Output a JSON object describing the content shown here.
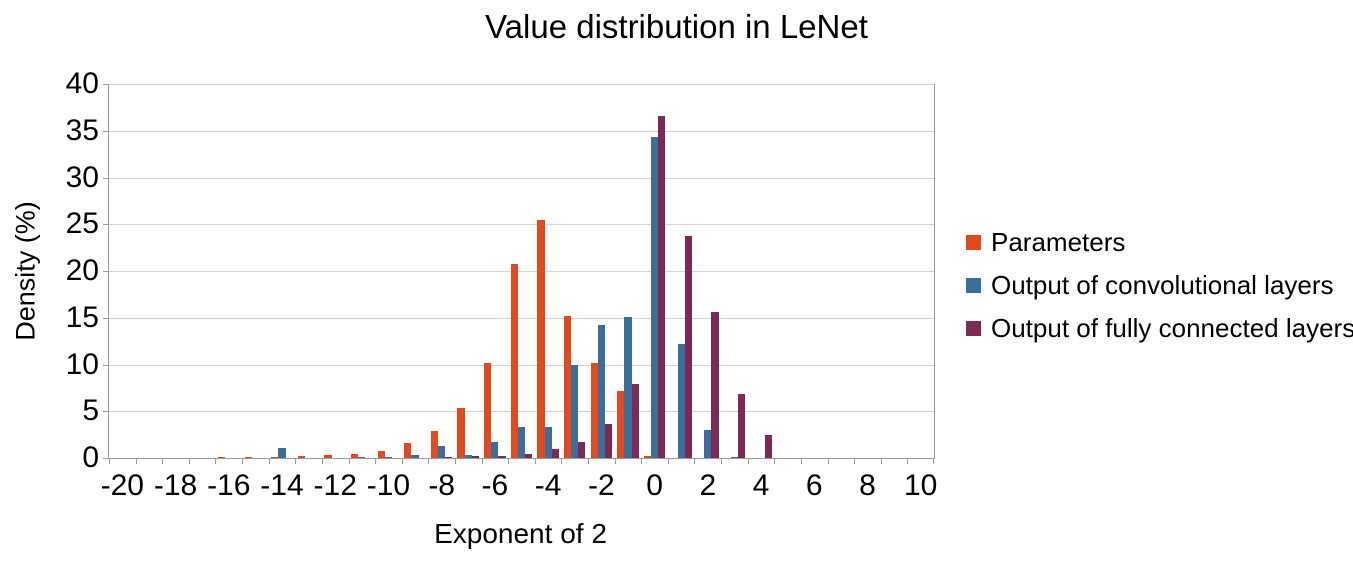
{
  "title": "Value distribution in LeNet",
  "axes": {
    "x_title": "Exponent of 2",
    "y_title": "Density (%)"
  },
  "legend": {
    "position": "right"
  },
  "chart_data": {
    "type": "bar",
    "title": "Value distribution in LeNet",
    "xlabel": "Exponent of 2",
    "ylabel": "Density (%)",
    "ylim": [
      0,
      40
    ],
    "y_tick_step": 5,
    "x_tick_labels": [
      "-20",
      "-18",
      "-16",
      "-14",
      "-12",
      "-10",
      "-8",
      "-6",
      "-4",
      "-2",
      "0",
      "2",
      "4",
      "6",
      "8",
      "10"
    ],
    "grid": true,
    "legend_position": "right",
    "x": [
      -20,
      -19,
      -18,
      -17,
      -16,
      -15,
      -14,
      -13,
      -12,
      -11,
      -10,
      -9,
      -8,
      -7,
      -6,
      -5,
      -4,
      -3,
      -2,
      -1,
      0,
      1,
      2,
      3,
      4,
      5,
      6,
      7,
      8,
      9,
      10
    ],
    "series": [
      {
        "name": "Parameters",
        "color": "#E04A1E",
        "values": [
          0,
          0,
          0,
          0,
          0.05,
          0.1,
          0.15,
          0.25,
          0.35,
          0.45,
          0.7,
          1.6,
          2.9,
          5.3,
          10.2,
          20.7,
          25.5,
          15.2,
          10.2,
          7.2,
          0.25,
          0,
          0,
          0,
          0,
          0,
          0,
          0,
          0,
          0,
          0
        ]
      },
      {
        "name": "Output of convolutional layers",
        "color": "#3B6E9C",
        "values": [
          0,
          0,
          0,
          0,
          0,
          0,
          1.1,
          0,
          0,
          0.1,
          0.15,
          0.3,
          1.3,
          0.35,
          1.75,
          3.3,
          3.3,
          10,
          14.2,
          15.1,
          34.3,
          12.2,
          3,
          0.15,
          0,
          0,
          0,
          0,
          0,
          0,
          0
        ]
      },
      {
        "name": "Output of fully connected layers",
        "color": "#7A2A54",
        "values": [
          0,
          0,
          0,
          0,
          0,
          0,
          0,
          0,
          0,
          0,
          0,
          0,
          0.05,
          0.2,
          0.25,
          0.4,
          0.95,
          1.7,
          3.6,
          7.9,
          36.6,
          23.7,
          15.6,
          6.9,
          2.5,
          0,
          0,
          0,
          0,
          0,
          0
        ]
      }
    ]
  }
}
